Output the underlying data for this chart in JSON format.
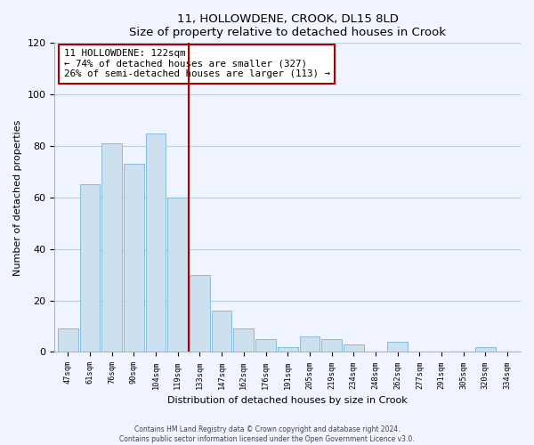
{
  "title": "11, HOLLOWDENE, CROOK, DL15 8LD",
  "subtitle": "Size of property relative to detached houses in Crook",
  "xlabel": "Distribution of detached houses by size in Crook",
  "ylabel": "Number of detached properties",
  "bar_labels": [
    "47sqm",
    "61sqm",
    "76sqm",
    "90sqm",
    "104sqm",
    "119sqm",
    "133sqm",
    "147sqm",
    "162sqm",
    "176sqm",
    "191sqm",
    "205sqm",
    "219sqm",
    "234sqm",
    "248sqm",
    "262sqm",
    "277sqm",
    "291sqm",
    "305sqm",
    "320sqm",
    "334sqm"
  ],
  "bar_values": [
    9,
    65,
    81,
    73,
    85,
    60,
    30,
    16,
    9,
    5,
    2,
    6,
    5,
    3,
    0,
    4,
    0,
    0,
    0,
    2,
    0
  ],
  "bar_color": "#cce0f0",
  "bar_edge_color": "#88bbdd",
  "vline_index": 5.5,
  "vline_color": "#aa0000",
  "annotation_line1": "11 HOLLOWDENE: 122sqm",
  "annotation_line2": "← 74% of detached houses are smaller (327)",
  "annotation_line3": "26% of semi-detached houses are larger (113) →",
  "annotation_box_color": "#ffffff",
  "annotation_box_edge": "#aa0000",
  "ylim": [
    0,
    120
  ],
  "yticks": [
    0,
    20,
    40,
    60,
    80,
    100,
    120
  ],
  "footer_line1": "Contains HM Land Registry data © Crown copyright and database right 2024.",
  "footer_line2": "Contains public sector information licensed under the Open Government Licence v3.0.",
  "bg_color": "#f0f4ff",
  "grid_color": "#c0cce0"
}
